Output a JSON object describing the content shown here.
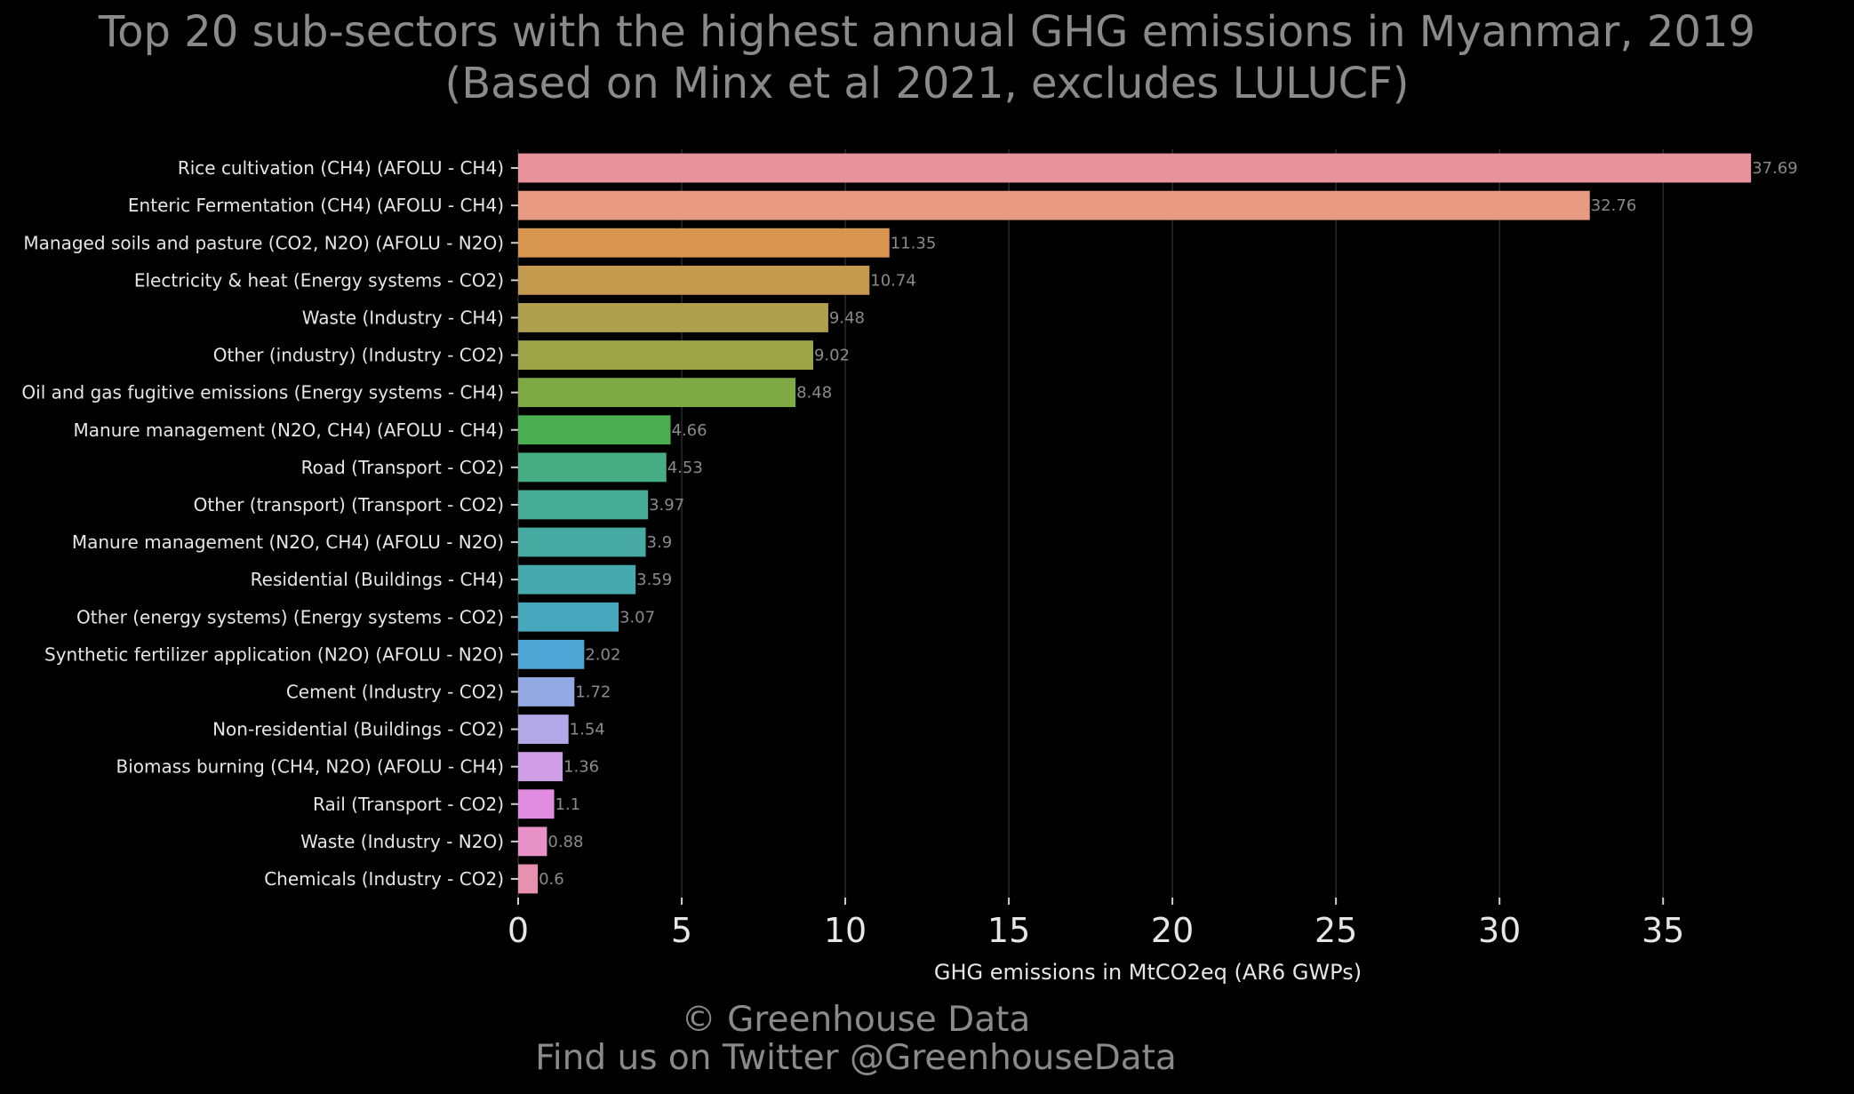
{
  "title_line1": "Top 20 sub-sectors with the highest annual GHG emissions in Myanmar, 2019",
  "title_line2": "(Based on Minx et al 2021, excludes LULUCF)",
  "footer_line1": "© Greenhouse Data",
  "footer_line2": "Find us on Twitter @GreenhouseData",
  "chart_data": {
    "type": "bar",
    "orientation": "horizontal",
    "xlabel": "GHG emissions in MtCO2eq (AR6 GWPs)",
    "ylabel": "",
    "xlim": [
      0,
      38.5
    ],
    "xticks": [
      0,
      5,
      10,
      15,
      20,
      25,
      30,
      35
    ],
    "grid": "vertical",
    "categories": [
      "Rice cultivation (CH4) (AFOLU - CH4)",
      "Enteric Fermentation (CH4) (AFOLU - CH4)",
      "Managed soils and pasture (CO2, N2O) (AFOLU - N2O)",
      "Electricity & heat (Energy systems - CO2)",
      "Waste (Industry - CH4)",
      "Other (industry) (Industry - CO2)",
      "Oil and gas fugitive emissions (Energy systems - CH4)",
      "Manure management (N2O, CH4) (AFOLU - CH4)",
      "Road (Transport - CO2)",
      "Other (transport) (Transport - CO2)",
      "Manure management (N2O, CH4) (AFOLU - N2O)",
      "Residential (Buildings - CH4)",
      "Other (energy systems) (Energy systems - CO2)",
      "Synthetic fertilizer application (N2O) (AFOLU - N2O)",
      "Cement (Industry - CO2)",
      "Non-residential (Buildings - CO2)",
      "Biomass burning (CH4, N2O) (AFOLU - CH4)",
      "Rail  (Transport - CO2)",
      "Waste (Industry - N2O)",
      "Chemicals (Industry - CO2)"
    ],
    "values": [
      37.69,
      32.76,
      11.35,
      10.74,
      9.48,
      9.02,
      8.48,
      4.66,
      4.53,
      3.97,
      3.9,
      3.59,
      3.07,
      2.02,
      1.72,
      1.54,
      1.36,
      1.1,
      0.88,
      0.6
    ],
    "value_labels": [
      "37.69",
      "32.76",
      "11.35",
      "10.74",
      "9.48",
      "9.02",
      "8.48",
      "4.66",
      "4.53",
      "3.97",
      "3.9",
      "3.59",
      "3.07",
      "2.02",
      "1.72",
      "1.54",
      "1.36",
      "1.1",
      "0.88",
      "0.6"
    ],
    "colors": [
      "#e8939c",
      "#e89a82",
      "#d89550",
      "#c49a4e",
      "#aea04c",
      "#9ea548",
      "#7fa945",
      "#4aae50",
      "#47ad85",
      "#46ac95",
      "#47aaa2",
      "#45a9ad",
      "#47a7bd",
      "#4ea6d6",
      "#93a9e4",
      "#b2a8e8",
      "#cf9ee6",
      "#e18ce0",
      "#e891c8",
      "#e890b0"
    ]
  }
}
